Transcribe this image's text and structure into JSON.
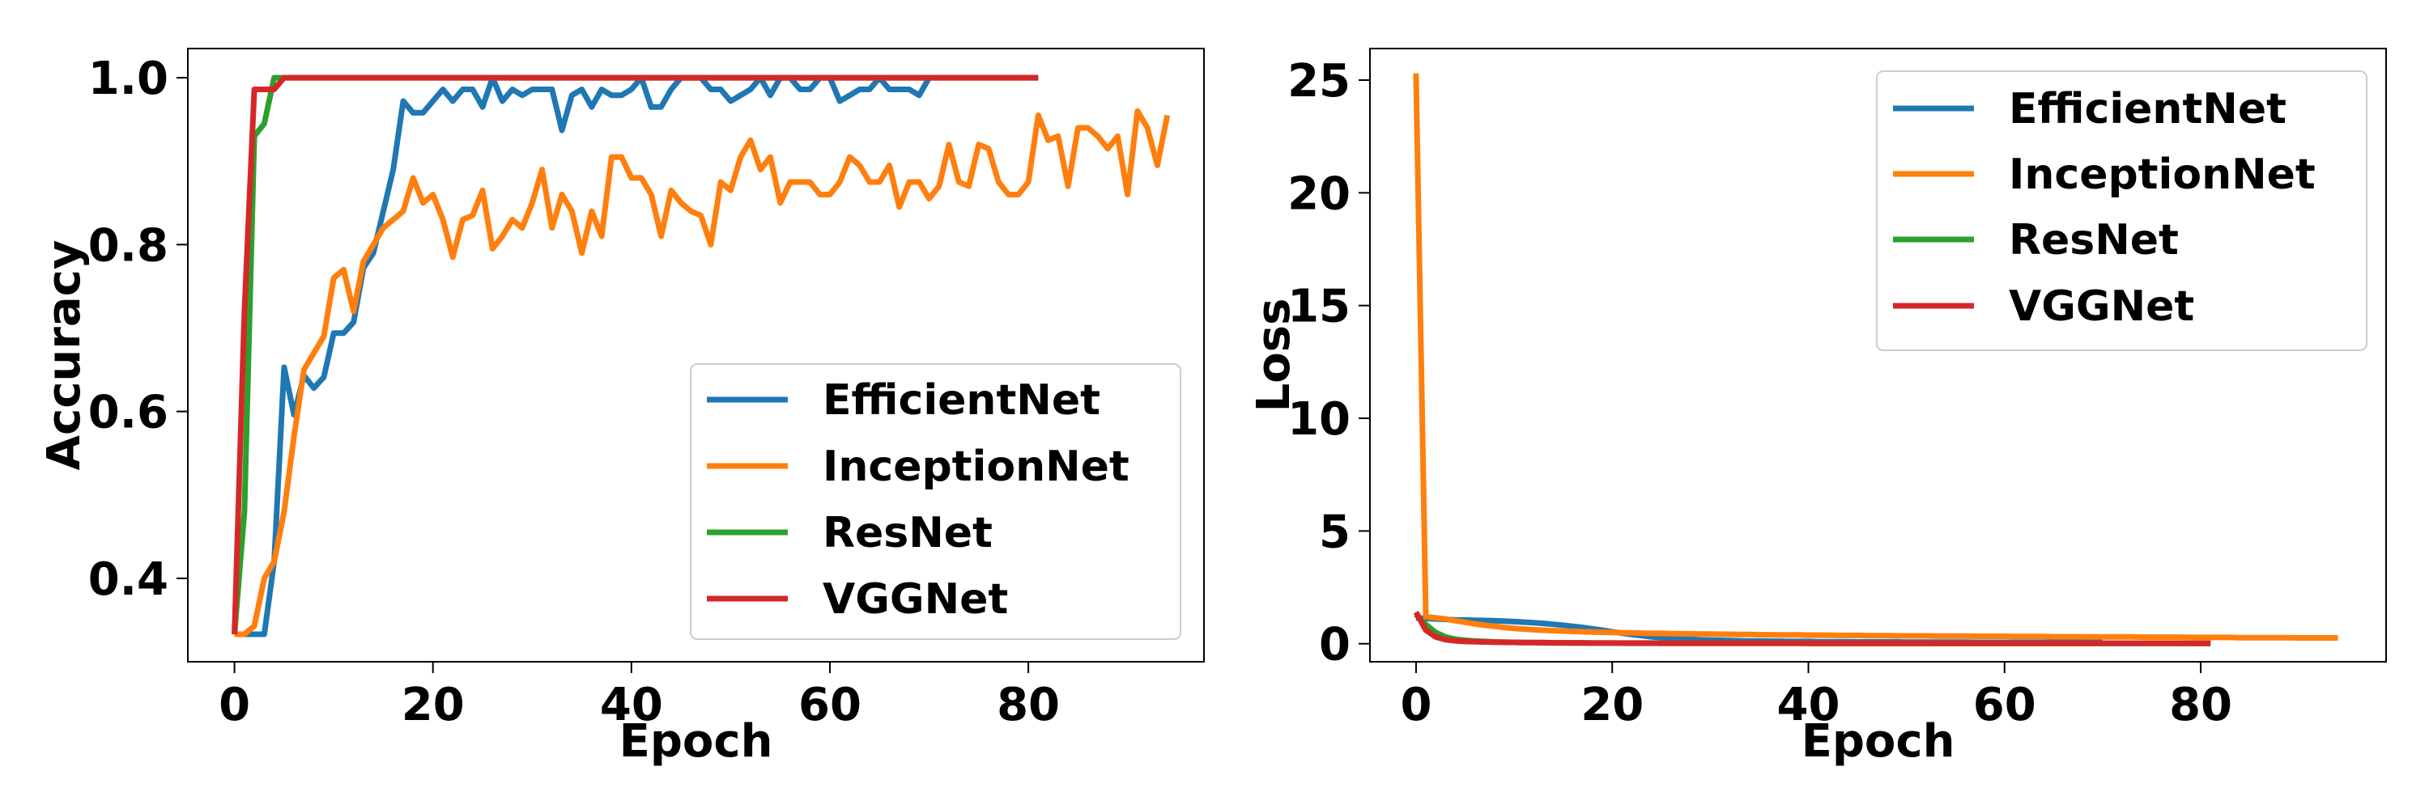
{
  "chart_data": [
    {
      "type": "line",
      "title": "",
      "xlabel": "Epoch",
      "ylabel": "Accuracy",
      "xlim": [
        -4.7,
        97.7
      ],
      "ylim": [
        0.3,
        1.035
      ],
      "xticks": [
        0,
        20,
        40,
        60,
        80
      ],
      "yticks": [
        0.4,
        0.6,
        0.8,
        1.0
      ],
      "ytick_format": 1,
      "legend_position": "lower-right",
      "grid": false,
      "series": [
        {
          "name": "EfficientNet",
          "color": "#1f77b4",
          "y": [
            0.333,
            0.333,
            0.333,
            0.333,
            0.42,
            0.653,
            0.596,
            0.643,
            0.628,
            0.641,
            0.694,
            0.694,
            0.707,
            0.772,
            0.79,
            0.84,
            0.89,
            0.972,
            0.958,
            0.958,
            0.972,
            0.986,
            0.972,
            0.986,
            0.986,
            0.965,
            1.0,
            0.972,
            0.986,
            0.979,
            0.986,
            0.986,
            0.986,
            0.937,
            0.979,
            0.986,
            0.965,
            0.986,
            0.979,
            0.979,
            0.986,
            1.0,
            0.965,
            0.965,
            0.986,
            1.0,
            1.0,
            1.0,
            0.986,
            0.986,
            0.972,
            0.979,
            0.986,
            1.0,
            0.979,
            1.0,
            1.0,
            0.986,
            0.986,
            1.0,
            1.0,
            0.972,
            0.979,
            0.986,
            0.986,
            1.0,
            0.986,
            0.986,
            0.986,
            0.979,
            1.0
          ]
        },
        {
          "name": "InceptionNet",
          "color": "#ff7f0e",
          "y": [
            0.333,
            0.333,
            0.343,
            0.4,
            0.42,
            0.48,
            0.57,
            0.65,
            0.67,
            0.69,
            0.76,
            0.77,
            0.72,
            0.78,
            0.8,
            0.82,
            0.83,
            0.84,
            0.88,
            0.85,
            0.86,
            0.83,
            0.785,
            0.83,
            0.835,
            0.865,
            0.795,
            0.81,
            0.83,
            0.82,
            0.85,
            0.89,
            0.82,
            0.86,
            0.84,
            0.79,
            0.84,
            0.81,
            0.905,
            0.905,
            0.88,
            0.88,
            0.86,
            0.81,
            0.865,
            0.85,
            0.84,
            0.835,
            0.8,
            0.875,
            0.865,
            0.905,
            0.925,
            0.89,
            0.905,
            0.85,
            0.875,
            0.875,
            0.875,
            0.86,
            0.86,
            0.875,
            0.905,
            0.895,
            0.875,
            0.875,
            0.895,
            0.845,
            0.875,
            0.875,
            0.855,
            0.87,
            0.92,
            0.875,
            0.87,
            0.92,
            0.915,
            0.875,
            0.86,
            0.86,
            0.875,
            0.955,
            0.925,
            0.93,
            0.87,
            0.94,
            0.94,
            0.93,
            0.915,
            0.93,
            0.86,
            0.96,
            0.94,
            0.895,
            0.955
          ]
        },
        {
          "name": "ResNet",
          "color": "#2ca02c",
          "y": [
            0.333,
            0.48,
            0.93,
            0.945,
            1.0,
            1.0,
            1.0,
            1.0,
            1.0,
            1.0,
            1.0,
            1.0,
            1.0,
            1.0,
            1.0,
            1.0,
            1.0,
            1.0,
            1.0,
            1.0,
            1.0,
            1.0,
            1.0,
            1.0,
            1.0,
            1.0,
            1.0,
            1.0,
            1.0,
            1.0,
            1.0,
            1.0,
            1.0,
            1.0,
            1.0,
            1.0,
            1.0,
            1.0,
            1.0,
            1.0,
            1.0,
            1.0,
            1.0,
            1.0,
            1.0,
            1.0,
            1.0,
            1.0,
            1.0,
            1.0,
            1.0,
            1.0,
            1.0,
            1.0,
            1.0,
            1.0,
            1.0,
            1.0,
            1.0,
            1.0,
            1.0,
            1.0,
            1.0,
            1.0,
            1.0,
            1.0,
            1.0,
            1.0,
            1.0,
            1.0,
            1.0,
            1.0,
            1.0,
            1.0,
            1.0,
            1.0,
            1.0,
            1.0,
            1.0,
            1.0,
            1.0,
            1.0
          ]
        },
        {
          "name": "VGGNet",
          "color": "#d62728",
          "y": [
            0.333,
            0.72,
            0.986,
            0.986,
            0.986,
            1.0,
            1.0,
            1.0,
            1.0,
            1.0,
            1.0,
            1.0,
            1.0,
            1.0,
            1.0,
            1.0,
            1.0,
            1.0,
            1.0,
            1.0,
            1.0,
            1.0,
            1.0,
            1.0,
            1.0,
            1.0,
            1.0,
            1.0,
            1.0,
            1.0,
            1.0,
            1.0,
            1.0,
            1.0,
            1.0,
            1.0,
            1.0,
            1.0,
            1.0,
            1.0,
            1.0,
            1.0,
            1.0,
            1.0,
            1.0,
            1.0,
            1.0,
            1.0,
            1.0,
            1.0,
            1.0,
            1.0,
            1.0,
            1.0,
            1.0,
            1.0,
            1.0,
            1.0,
            1.0,
            1.0,
            1.0,
            1.0,
            1.0,
            1.0,
            1.0,
            1.0,
            1.0,
            1.0,
            1.0,
            1.0,
            1.0,
            1.0,
            1.0,
            1.0,
            1.0,
            1.0,
            1.0,
            1.0,
            1.0,
            1.0,
            1.0,
            1.0
          ]
        }
      ]
    },
    {
      "type": "line",
      "title": "",
      "xlabel": "Epoch",
      "ylabel": "Loss",
      "xlim": [
        -4.7,
        98.9
      ],
      "ylim": [
        -0.8,
        26.4
      ],
      "xticks": [
        0,
        20,
        40,
        60,
        80
      ],
      "yticks": [
        0,
        5,
        10,
        15,
        20,
        25
      ],
      "ytick_format": 0,
      "legend_position": "upper-right",
      "grid": false,
      "series": [
        {
          "name": "EfficientNet",
          "color": "#1f77b4",
          "y": [
            1.15,
            1.12,
            1.1,
            1.08,
            1.06,
            1.05,
            1.04,
            1.03,
            1.02,
            1.0,
            0.98,
            0.96,
            0.93,
            0.9,
            0.86,
            0.82,
            0.77,
            0.72,
            0.66,
            0.6,
            0.53,
            0.47,
            0.41,
            0.36,
            0.31,
            0.27,
            0.24,
            0.21,
            0.19,
            0.17,
            0.16,
            0.15,
            0.14,
            0.13,
            0.12,
            0.12,
            0.11,
            0.11,
            0.1,
            0.1,
            0.1,
            0.09,
            0.09,
            0.09,
            0.09,
            0.08,
            0.08,
            0.08,
            0.08,
            0.08,
            0.07,
            0.07,
            0.07,
            0.07,
            0.07,
            0.07,
            0.07,
            0.06,
            0.06,
            0.06,
            0.06,
            0.06,
            0.06,
            0.06,
            0.06,
            0.06,
            0.06,
            0.06,
            0.06,
            0.06,
            0.06
          ]
        },
        {
          "name": "InceptionNet",
          "color": "#ff7f0e",
          "y": [
            25.3,
            1.2,
            1.15,
            1.1,
            1.02,
            0.95,
            0.88,
            0.82,
            0.77,
            0.72,
            0.68,
            0.65,
            0.62,
            0.6,
            0.58,
            0.56,
            0.55,
            0.53,
            0.52,
            0.51,
            0.5,
            0.49,
            0.48,
            0.47,
            0.46,
            0.46,
            0.45,
            0.44,
            0.44,
            0.43,
            0.43,
            0.42,
            0.42,
            0.41,
            0.41,
            0.4,
            0.4,
            0.39,
            0.39,
            0.39,
            0.38,
            0.38,
            0.38,
            0.37,
            0.37,
            0.37,
            0.36,
            0.36,
            0.36,
            0.35,
            0.35,
            0.35,
            0.35,
            0.34,
            0.34,
            0.34,
            0.34,
            0.33,
            0.33,
            0.33,
            0.33,
            0.32,
            0.32,
            0.32,
            0.32,
            0.31,
            0.31,
            0.31,
            0.31,
            0.3,
            0.3,
            0.3,
            0.3,
            0.3,
            0.29,
            0.29,
            0.29,
            0.29,
            0.29,
            0.28,
            0.28,
            0.28,
            0.28,
            0.28,
            0.27,
            0.27,
            0.27,
            0.27,
            0.27,
            0.27,
            0.26,
            0.26,
            0.26,
            0.26,
            0.26
          ]
        },
        {
          "name": "ResNet",
          "color": "#2ca02c",
          "y": [
            1.3,
            0.85,
            0.5,
            0.3,
            0.2,
            0.15,
            0.12,
            0.1,
            0.08,
            0.07,
            0.06,
            0.05,
            0.05,
            0.04,
            0.04,
            0.04,
            0.03,
            0.03,
            0.03,
            0.03,
            0.03,
            0.02,
            0.02,
            0.02,
            0.02,
            0.02,
            0.02,
            0.02,
            0.02,
            0.02,
            0.02,
            0.02,
            0.02,
            0.02,
            0.02,
            0.02,
            0.02,
            0.02,
            0.02,
            0.02,
            0.01,
            0.01,
            0.01,
            0.01,
            0.01,
            0.01,
            0.01,
            0.01,
            0.01,
            0.01,
            0.01,
            0.01,
            0.01,
            0.01,
            0.01,
            0.01,
            0.01,
            0.01,
            0.01,
            0.01,
            0.01,
            0.01,
            0.01,
            0.01,
            0.01,
            0.01,
            0.01,
            0.01,
            0.01,
            0.01,
            0.01,
            0.01,
            0.01,
            0.01,
            0.01,
            0.01,
            0.01,
            0.01,
            0.01,
            0.01,
            0.01,
            0.01
          ]
        },
        {
          "name": "VGGNet",
          "color": "#d62728",
          "y": [
            1.4,
            0.6,
            0.3,
            0.18,
            0.13,
            0.1,
            0.09,
            0.08,
            0.07,
            0.06,
            0.06,
            0.05,
            0.05,
            0.05,
            0.04,
            0.04,
            0.04,
            0.04,
            0.03,
            0.03,
            0.03,
            0.03,
            0.03,
            0.03,
            0.03,
            0.02,
            0.02,
            0.02,
            0.02,
            0.02,
            0.02,
            0.02,
            0.02,
            0.02,
            0.02,
            0.02,
            0.02,
            0.02,
            0.02,
            0.02,
            0.02,
            0.02,
            0.02,
            0.02,
            0.02,
            0.02,
            0.02,
            0.02,
            0.02,
            0.02,
            0.02,
            0.02,
            0.02,
            0.02,
            0.02,
            0.02,
            0.02,
            0.02,
            0.02,
            0.02,
            0.02,
            0.02,
            0.02,
            0.02,
            0.02,
            0.02,
            0.02,
            0.02,
            0.02,
            0.02,
            0.02,
            0.02,
            0.02,
            0.02,
            0.02,
            0.02,
            0.02,
            0.02,
            0.02,
            0.02,
            0.02,
            0.02
          ]
        }
      ]
    }
  ]
}
